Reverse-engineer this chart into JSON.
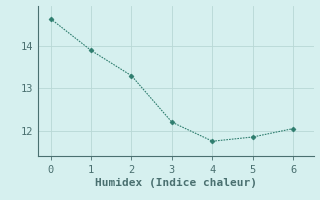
{
  "x": [
    0,
    1,
    2,
    3,
    4,
    5,
    6
  ],
  "y": [
    14.65,
    13.9,
    13.3,
    12.2,
    11.75,
    11.85,
    12.05
  ],
  "xlabel": "Humidex (Indice chaleur)",
  "xlim": [
    -0.3,
    6.5
  ],
  "ylim": [
    11.4,
    14.95
  ],
  "yticks": [
    12,
    13,
    14
  ],
  "xticks": [
    0,
    1,
    2,
    3,
    4,
    5,
    6
  ],
  "line_color": "#2e7d6e",
  "marker": "D",
  "marker_size": 2.5,
  "bg_color": "#d6f0ef",
  "grid_color": "#b8d8d5",
  "axis_color": "#4a7070",
  "label_fontsize": 8,
  "tick_fontsize": 7.5,
  "font_family": "monospace"
}
